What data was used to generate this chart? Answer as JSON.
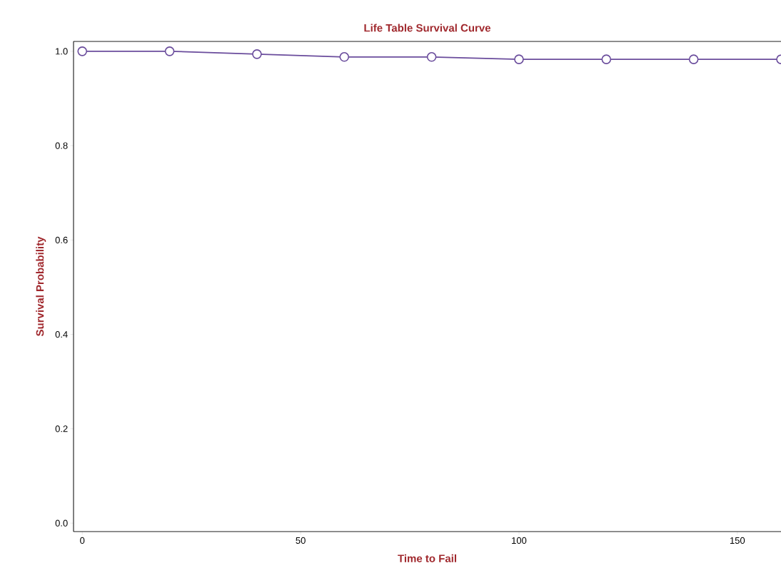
{
  "chart_data": {
    "type": "line",
    "title": "Life Table Survival Curve",
    "xlabel": "Time to Fail",
    "ylabel": "Survival Probability",
    "x": [
      0,
      20,
      40,
      60,
      80,
      100,
      120,
      140,
      160
    ],
    "series": [
      {
        "color": "#6a4c9c",
        "values": [
          1.0,
          1.0,
          0.994,
          0.988,
          0.988,
          0.983,
          0.983,
          0.983,
          0.983
        ]
      }
    ],
    "xlim": [
      -2,
      160
    ],
    "ylim": [
      -0.018,
      1.021
    ],
    "xticks": [
      0,
      50,
      100,
      150
    ],
    "yticks": [
      {
        "value": 0,
        "label": "0.0"
      },
      {
        "value": 0.2,
        "label": "0.2"
      },
      {
        "value": 0.4,
        "label": "0.4"
      },
      {
        "value": 0.6,
        "label": "0.6"
      },
      {
        "value": 0.8,
        "label": "0.8"
      },
      {
        "value": 1,
        "label": "1.0"
      }
    ],
    "marker": "circle",
    "line_style": "solid",
    "grid": false
  }
}
